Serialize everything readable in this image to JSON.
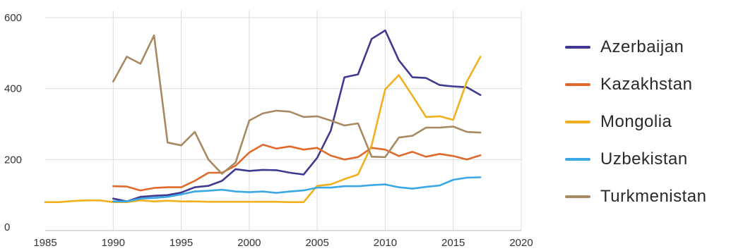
{
  "chart_data": {
    "type": "line",
    "title": "",
    "xlabel": "",
    "ylabel": "",
    "xlim": [
      1985,
      2020
    ],
    "ylim": [
      0,
      600
    ],
    "x_ticks": [
      "1985",
      "1990",
      "1995",
      "2000",
      "2005",
      "2010",
      "2015",
      "2020"
    ],
    "y_ticks": [
      "0",
      "200",
      "400",
      "600"
    ],
    "grid": "vertical and horizontal",
    "legend_position": "right",
    "series": [
      {
        "name": "Azerbaijan",
        "color": "#3f3a8f",
        "x": [
          1990,
          1991,
          1992,
          1993,
          1994,
          1995,
          1996,
          1997,
          1998,
          1999,
          2000,
          2001,
          2002,
          2003,
          2004,
          2005,
          2006,
          2007,
          2008,
          2009,
          2010,
          2011,
          2012,
          2013,
          2014,
          2015,
          2016,
          2017
        ],
        "y": [
          90,
          82,
          95,
          98,
          100,
          107,
          122,
          126,
          140,
          173,
          168,
          171,
          170,
          163,
          158,
          205,
          282,
          432,
          440,
          540,
          564,
          480,
          432,
          430,
          410,
          406,
          404,
          382
        ]
      },
      {
        "name": "Kazakhstan",
        "color": "#e06a2c",
        "x": [
          1990,
          1991,
          1992,
          1993,
          1994,
          1995,
          1996,
          1997,
          1998,
          1999,
          2000,
          2001,
          2002,
          2003,
          2004,
          2005,
          2006,
          2007,
          2008,
          2009,
          2010,
          2011,
          2012,
          2013,
          2014,
          2015,
          2016,
          2017
        ],
        "y": [
          125,
          124,
          113,
          120,
          122,
          122,
          140,
          163,
          163,
          183,
          220,
          242,
          231,
          237,
          228,
          233,
          211,
          200,
          207,
          233,
          228,
          210,
          222,
          208,
          216,
          210,
          200,
          212
        ]
      },
      {
        "name": "Mongolia",
        "color": "#f2b01e",
        "x": [
          1985,
          1986,
          1987,
          1988,
          1989,
          1990,
          1991,
          1992,
          1993,
          1994,
          1995,
          1996,
          1997,
          1998,
          1999,
          2000,
          2001,
          2002,
          2003,
          2004,
          2005,
          2006,
          2007,
          2008,
          2009,
          2010,
          2011,
          2012,
          2013,
          2014,
          2015,
          2016,
          2017
        ],
        "y": [
          80,
          80,
          83,
          85,
          85,
          80,
          80,
          85,
          82,
          84,
          82,
          82,
          81,
          81,
          81,
          81,
          81,
          81,
          80,
          80,
          126,
          130,
          145,
          158,
          240,
          398,
          438,
          380,
          320,
          322,
          312,
          420,
          490
        ]
      },
      {
        "name": "Uzbekistan",
        "color": "#3aa8e4",
        "x": [
          1990,
          1991,
          1992,
          1993,
          1994,
          1995,
          1996,
          1997,
          1998,
          1999,
          2000,
          2001,
          2002,
          2003,
          2004,
          2005,
          2006,
          2007,
          2008,
          2009,
          2010,
          2011,
          2012,
          2013,
          2014,
          2015,
          2016,
          2017
        ],
        "y": [
          82,
          82,
          90,
          92,
          95,
          102,
          110,
          112,
          115,
          110,
          108,
          110,
          106,
          110,
          113,
          121,
          121,
          125,
          125,
          128,
          130,
          122,
          118,
          123,
          127,
          143,
          149,
          150
        ]
      },
      {
        "name": "Turkmenistan",
        "color": "#a88a62",
        "x": [
          1990,
          1991,
          1992,
          1993,
          1994,
          1995,
          1996,
          1997,
          1998,
          1999,
          2000,
          2001,
          2002,
          2003,
          2004,
          2005,
          2006,
          2007,
          2008,
          2009,
          2010,
          2011,
          2012,
          2013,
          2014,
          2015,
          2016,
          2017
        ],
        "y": [
          420,
          490,
          470,
          550,
          248,
          240,
          278,
          200,
          160,
          192,
          310,
          330,
          338,
          335,
          320,
          322,
          310,
          296,
          302,
          208,
          207,
          262,
          267,
          290,
          290,
          293,
          278,
          276
        ]
      }
    ]
  }
}
